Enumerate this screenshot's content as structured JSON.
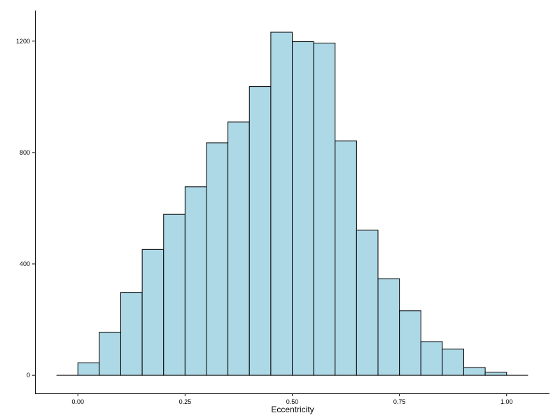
{
  "chart_data": {
    "type": "bar",
    "subtype": "histogram",
    "title": "",
    "xlabel": "Eccentricity",
    "ylabel": "",
    "bin_width": 0.05,
    "bins": [
      {
        "x_start": -0.05,
        "x_end": 0.0,
        "count": 0
      },
      {
        "x_start": 0.0,
        "x_end": 0.05,
        "count": 45
      },
      {
        "x_start": 0.05,
        "x_end": 0.1,
        "count": 155
      },
      {
        "x_start": 0.1,
        "x_end": 0.15,
        "count": 298
      },
      {
        "x_start": 0.15,
        "x_end": 0.2,
        "count": 452
      },
      {
        "x_start": 0.2,
        "x_end": 0.25,
        "count": 578
      },
      {
        "x_start": 0.25,
        "x_end": 0.3,
        "count": 677
      },
      {
        "x_start": 0.3,
        "x_end": 0.35,
        "count": 835
      },
      {
        "x_start": 0.35,
        "x_end": 0.4,
        "count": 910
      },
      {
        "x_start": 0.4,
        "x_end": 0.45,
        "count": 1037
      },
      {
        "x_start": 0.45,
        "x_end": 0.5,
        "count": 1232
      },
      {
        "x_start": 0.5,
        "x_end": 0.55,
        "count": 1198
      },
      {
        "x_start": 0.55,
        "x_end": 0.6,
        "count": 1193
      },
      {
        "x_start": 0.6,
        "x_end": 0.65,
        "count": 842
      },
      {
        "x_start": 0.65,
        "x_end": 0.7,
        "count": 521
      },
      {
        "x_start": 0.7,
        "x_end": 0.75,
        "count": 347
      },
      {
        "x_start": 0.75,
        "x_end": 0.8,
        "count": 232
      },
      {
        "x_start": 0.8,
        "x_end": 0.85,
        "count": 121
      },
      {
        "x_start": 0.85,
        "x_end": 0.9,
        "count": 94
      },
      {
        "x_start": 0.9,
        "x_end": 0.95,
        "count": 28
      },
      {
        "x_start": 0.95,
        "x_end": 1.0,
        "count": 11
      },
      {
        "x_start": 1.0,
        "x_end": 1.05,
        "count": 0
      }
    ],
    "xlim": [
      -0.1,
      1.1
    ],
    "ylim": [
      -65,
      1310
    ],
    "x_ticks": [
      {
        "value": 0.0,
        "label": "0.00"
      },
      {
        "value": 0.25,
        "label": "0.25"
      },
      {
        "value": 0.5,
        "label": "0.50"
      },
      {
        "value": 0.75,
        "label": "0.75"
      },
      {
        "value": 1.0,
        "label": "1.00"
      }
    ],
    "y_ticks": [
      {
        "value": 0,
        "label": "0"
      },
      {
        "value": 400,
        "label": "400"
      },
      {
        "value": 800,
        "label": "800"
      },
      {
        "value": 1200,
        "label": "1200"
      }
    ],
    "grid": false,
    "legend": "none",
    "colors": {
      "bar_fill": "#add8e6",
      "bar_stroke": "#000000",
      "axis": "#000000",
      "background": "#ffffff"
    }
  }
}
